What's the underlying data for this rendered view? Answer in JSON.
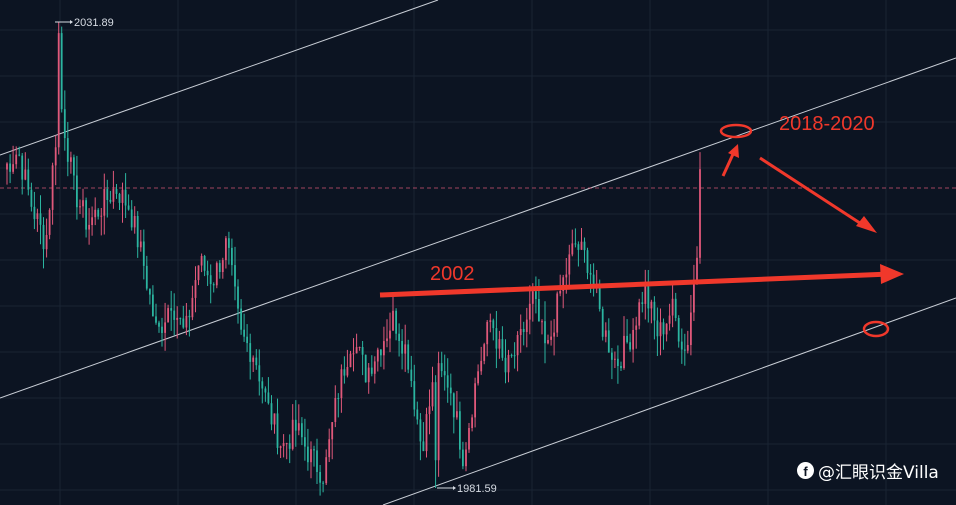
{
  "chart_data": {
    "type": "candlestick",
    "grid": true,
    "high_marker": "2031.89",
    "low_marker": "1981.59",
    "annotations": [
      "2002",
      "2018-2020"
    ],
    "colors": {
      "background": "#0c1422",
      "up_candle": "#e0587a",
      "down_candle": "#2bb5a0",
      "channel_line": "#c9ced6",
      "annotation": "#f0382b",
      "price_line": "#e0587a"
    },
    "candles_close_path": [
      2016,
      2018,
      2012,
      2008,
      2024,
      2014,
      2010,
      2012,
      2014,
      2012,
      2006,
      1998,
      2002,
      1998,
      2006,
      2004,
      2008,
      1998,
      1996,
      1990,
      1986,
      1988,
      1985,
      1983,
      1992,
      1998,
      1994,
      1997,
      2000,
      1996,
      1986,
      1994,
      1993,
      1985,
      1994,
      2000,
      1994,
      1997,
      2002,
      1996,
      2003,
      2008,
      2006,
      1999,
      1995,
      1998,
      2003,
      1998,
      2001,
      1996,
      2010
    ]
  },
  "watermark": {
    "icon": "facebook-icon",
    "text": "@汇眼识金Villa"
  }
}
